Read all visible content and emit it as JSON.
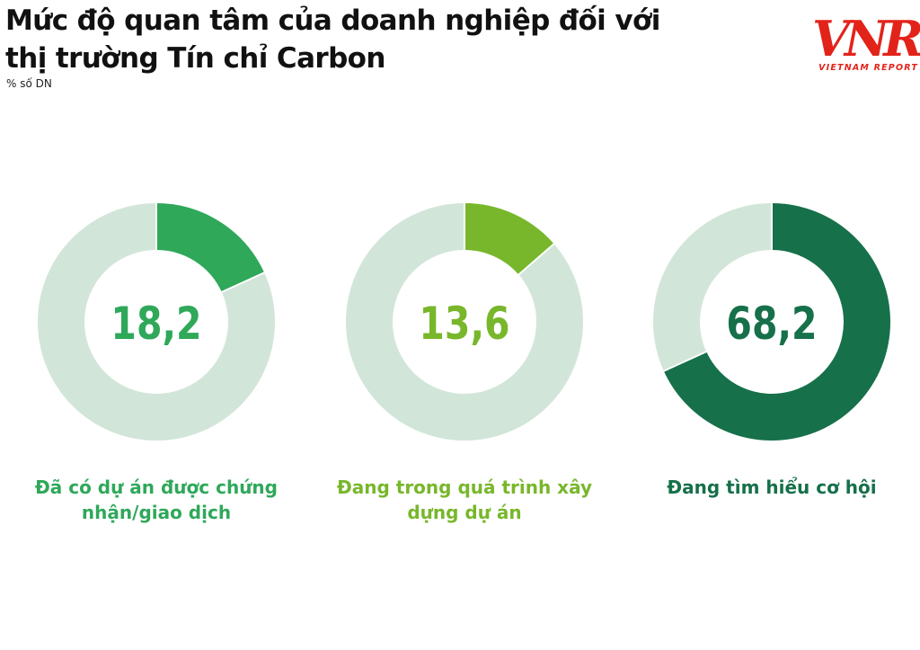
{
  "header": {
    "title": "Mức độ quan tâm của doanh nghiệp đối với thị trường Tín chỉ Carbon",
    "subtitle": "% số DN"
  },
  "logo": {
    "mark": "VNR",
    "text": "VIETNAM REPORT",
    "color": "#e2231a"
  },
  "colors": {
    "track": "#d2e5d9"
  },
  "chart_data": {
    "type": "pie",
    "title": "Mức độ quan tâm của doanh nghiệp đối với thị trường Tín chỉ Carbon",
    "unit": "% số DN",
    "series": [
      {
        "label": "Đã có dự án được chứng nhận/giao dịch",
        "value": 18.2,
        "value_text": "18,2",
        "color": "#2fa85a"
      },
      {
        "label": "Đang trong quá trình xây dựng dự án",
        "value": 13.6,
        "value_text": "13,6",
        "color": "#78b72b"
      },
      {
        "label": "Đang tìm hiểu cơ hội",
        "value": 68.2,
        "value_text": "68,2",
        "color": "#16704a"
      }
    ]
  }
}
